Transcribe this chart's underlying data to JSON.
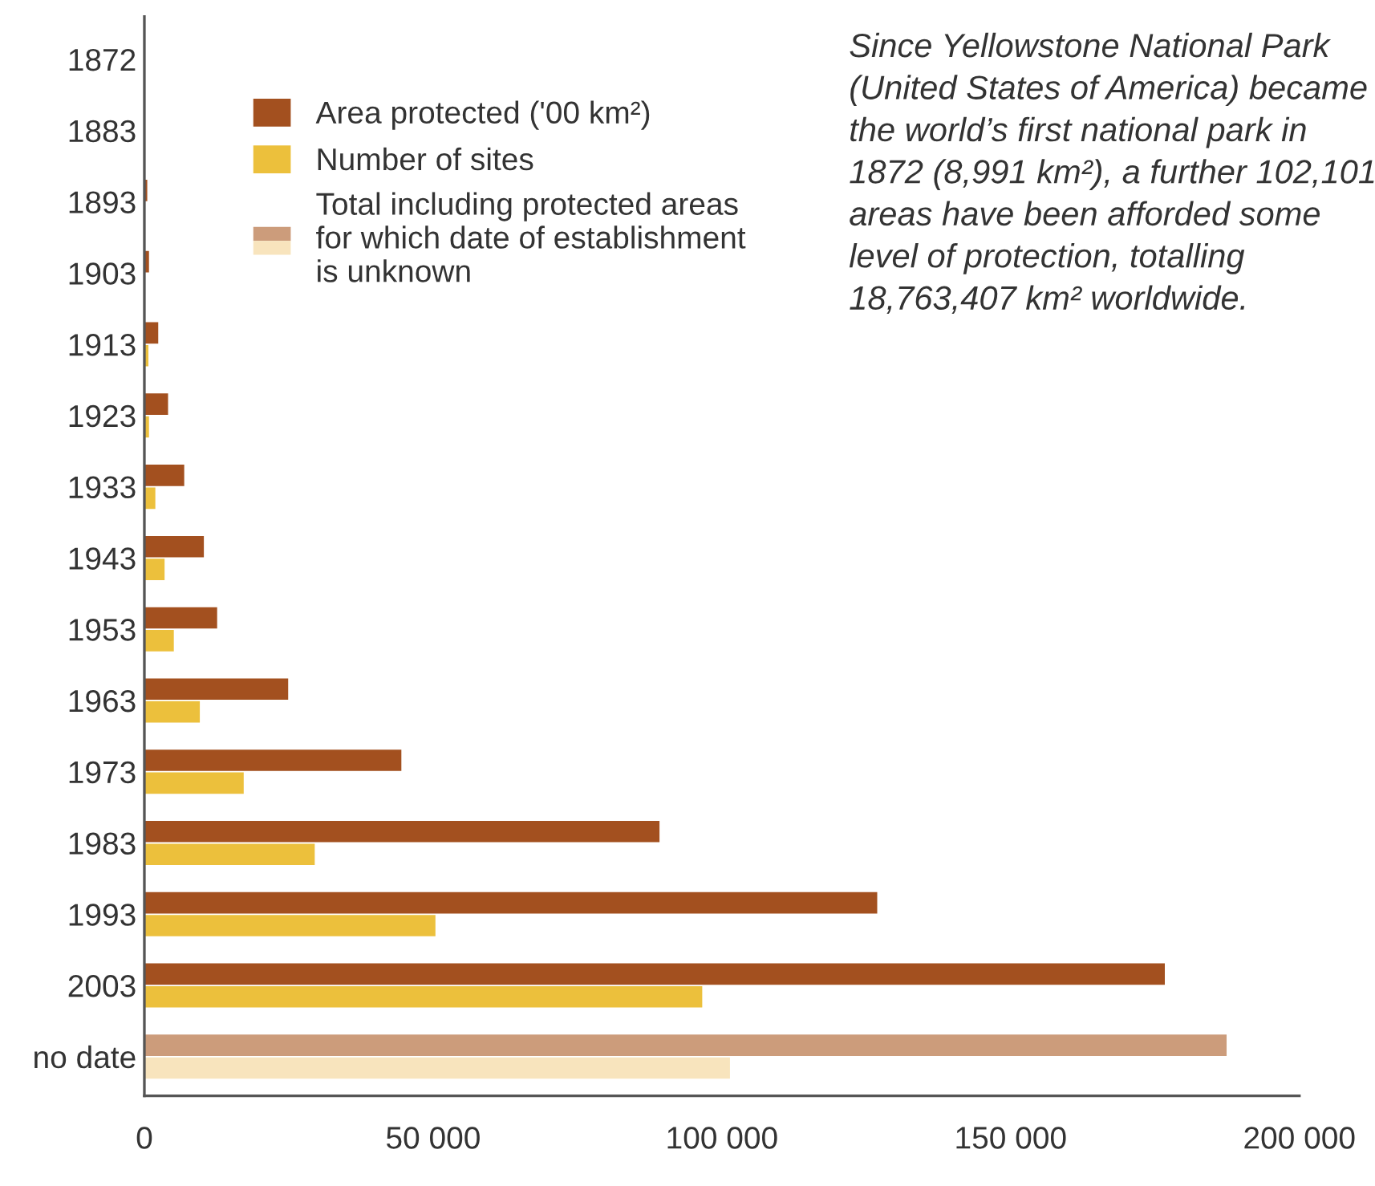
{
  "chart_data": {
    "type": "bar",
    "orientation": "horizontal",
    "categories": [
      "1872",
      "1883",
      "1893",
      "1903",
      "1913",
      "1923",
      "1933",
      "1943",
      "1953",
      "1963",
      "1973",
      "1983",
      "1993",
      "2003",
      "no date"
    ],
    "series": [
      {
        "name": "Area protected ('00 km²)",
        "color": "#a3501f",
        "values": [
          null,
          null,
          500,
          800,
          2400,
          4100,
          6900,
          10300,
          12600,
          24900,
          44500,
          89200,
          126900,
          176700,
          null
        ]
      },
      {
        "name": "Number of sites",
        "color": "#ecc03c",
        "values": [
          null,
          null,
          null,
          null,
          700,
          800,
          1900,
          3500,
          5100,
          9600,
          17200,
          29500,
          50400,
          96600,
          null
        ]
      },
      {
        "name": "Total including protected areas\nfor which date of establishment\nis unknown",
        "color": "#cc9c7b",
        "values": [
          null,
          null,
          null,
          null,
          null,
          null,
          null,
          null,
          null,
          null,
          null,
          null,
          null,
          null,
          187400
        ]
      },
      {
        "color": "#f8e4bd",
        "values": [
          null,
          null,
          null,
          null,
          null,
          null,
          null,
          null,
          null,
          null,
          null,
          null,
          null,
          null,
          101400
        ]
      }
    ],
    "xlim": [
      0,
      200000
    ],
    "xticks": [
      0,
      {
        "value": 50000,
        "label": "50 000"
      },
      {
        "value": 100000,
        "label": "100 000"
      },
      {
        "value": 150000,
        "label": "150 000"
      },
      {
        "value": 200000,
        "label": "200 000"
      }
    ],
    "legend": "top left",
    "grid": false,
    "annotations": [
      "Since Yellowstone National Park\n(United States of America) became\nthe world’s first national park in\n1872 (8,991 km²), a further 102,101\nareas have been afforded some\nlevel of protection, totalling\n18,763,407 km² worldwide."
    ]
  }
}
